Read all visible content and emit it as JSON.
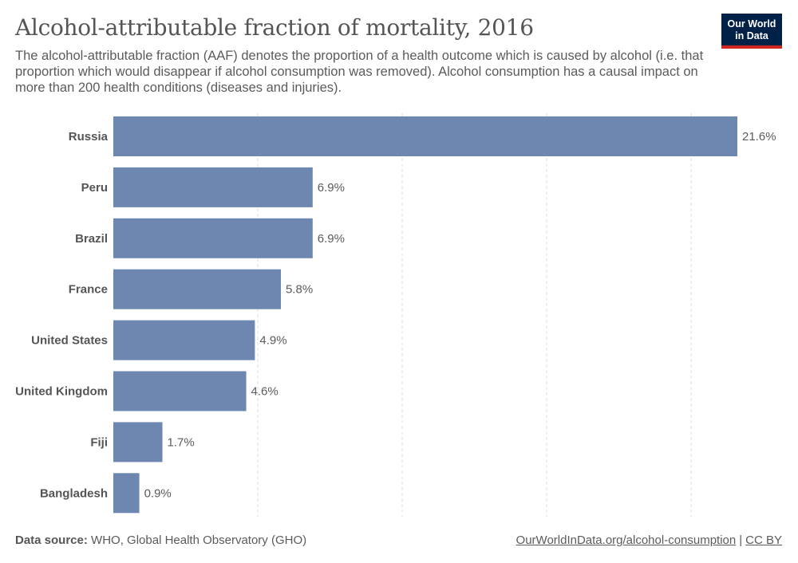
{
  "header": {
    "title": "Alcohol-attributable fraction of mortality, 2016",
    "subtitle": "The alcohol-attributable fraction (AAF) denotes the proportion of a health outcome which is caused by alcohol (i.e. that proportion which would disappear if alcohol consumption was removed). Alcohol consumption has a causal impact on more than 200 health conditions (diseases and injuries).",
    "logo_line1": "Our World",
    "logo_line2": "in Data"
  },
  "footer": {
    "source_label": "Data source:",
    "source_text": "WHO, Global Health Observatory (GHO)",
    "link_text": "OurWorldInData.org/alcohol-consumption",
    "separator": "|",
    "license": "CC BY"
  },
  "colors": {
    "bar": "#6d87b0",
    "grid": "#dddddd",
    "logo_bg": "#002147",
    "logo_accent": "#ce261e"
  },
  "chart_data": {
    "type": "bar",
    "orientation": "horizontal",
    "title": "Alcohol-attributable fraction of mortality, 2016",
    "categories": [
      "Russia",
      "Peru",
      "Brazil",
      "France",
      "United States",
      "United Kingdom",
      "Fiji",
      "Bangladesh"
    ],
    "values": [
      21.6,
      6.9,
      6.9,
      5.8,
      4.9,
      4.6,
      1.7,
      0.9
    ],
    "value_labels": [
      "21.6%",
      "6.9%",
      "6.9%",
      "5.8%",
      "4.9%",
      "4.6%",
      "1.7%",
      "0.9%"
    ],
    "unit": "%",
    "xlim": [
      0,
      21.6
    ],
    "gridlines": [
      5,
      10,
      15,
      20
    ],
    "grid": true,
    "legend": "none"
  }
}
